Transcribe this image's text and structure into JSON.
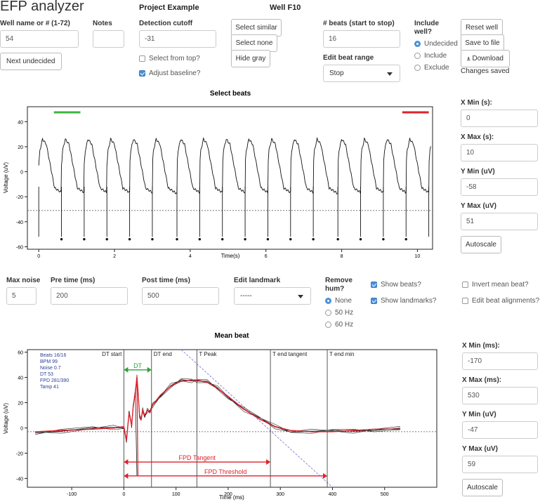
{
  "app": {
    "title": "EFP analyzer"
  },
  "project": {
    "title": "Project Example",
    "well_title": "Well F10"
  },
  "well": {
    "label": "Well name or # (1-72)",
    "value": "54",
    "next_button": "Next undecided"
  },
  "notes": {
    "label": "Notes",
    "value": ""
  },
  "detection": {
    "label": "Detection cutoff",
    "value": "-31",
    "select_from_top": "Select from top?",
    "adjust_baseline": "Adjust baseline?"
  },
  "selection": {
    "similar": "Select similar",
    "none": "Select none",
    "hide_gray": "Hide gray"
  },
  "beats": {
    "label": "# beats (start to stop)",
    "value": "16",
    "edit_range_label": "Edit beat range",
    "edit_range_value": "Stop"
  },
  "include": {
    "label_line1": "Include",
    "label_line2": "well?",
    "options": [
      "Undecided",
      "Include",
      "Exclude"
    ]
  },
  "actions": {
    "reset": "Reset well",
    "save": "Save to file",
    "download": "Download",
    "download_icon": "download-icon",
    "status": "Changes saved"
  },
  "select_plot": {
    "title": "Select beats",
    "xlabel": "Time(s)",
    "ylabel": "Voltage (uV)",
    "xticks": [
      "0",
      "2",
      "4",
      "6",
      "8",
      "10"
    ],
    "yticks": [
      "40",
      "20",
      "0",
      "-20",
      "-40",
      "-60"
    ]
  },
  "select_axes": {
    "xmin_label": "X Min (s):",
    "xmin": "0",
    "xmax_label": "X Max (s):",
    "xmax": "10",
    "ymin_label": "Y Min (uV)",
    "ymin": "-58",
    "ymax_label": "Y Max (uV)",
    "ymax": "51",
    "autoscale": "Autoscale"
  },
  "params": {
    "max_noise_label": "Max noise",
    "max_noise": "5",
    "pre_time_label": "Pre time (ms)",
    "pre_time": "200",
    "post_time_label": "Post time (ms)",
    "post_time": "500",
    "landmark_label": "Edit landmark",
    "landmark_value": "-----"
  },
  "hum": {
    "label_line1": "Remove",
    "label_line2": "hum?",
    "options": [
      "None",
      "50 Hz",
      "60 Hz"
    ]
  },
  "display": {
    "show_beats": "Show beats?",
    "show_landmarks": "Show landmarks?",
    "invert": "Invert mean beat?",
    "edit_align": "Edit beat alignments?"
  },
  "mean_plot": {
    "title": "Mean beat",
    "xlabel": "Time (ms)",
    "ylabel": "Voltage (uV)",
    "xticks": [
      "-100",
      "0",
      "100",
      "200",
      "300",
      "400",
      "500"
    ],
    "yticks": [
      "60",
      "40",
      "20",
      "0",
      "-20",
      "-40"
    ],
    "stats": [
      "Beats 16/16",
      "BPM 99",
      "Noise 0.7",
      "DT 53",
      "FPD 281/390",
      "Tamp 41"
    ],
    "landmarks": [
      "DT start",
      "DT end",
      "T Peak",
      "T end tangent",
      "T end min"
    ],
    "dt_label": "DT",
    "fpd_tangent_label": "FPD Tangent",
    "fpd_threshold_label": "FPD Threshold"
  },
  "mean_axes": {
    "xmin_label": "X Min (ms):",
    "xmin": "-170",
    "xmax_label": "X Max (ms):",
    "xmax": "530",
    "ymin_label": "Y Min (uV)",
    "ymin": "-47",
    "ymax_label": "Y Max (uV)",
    "ymax": "59",
    "autoscale": "Autoscale"
  },
  "chart_data": [
    {
      "type": "line",
      "title": "Select beats",
      "xlabel": "Time(s)",
      "ylabel": "Voltage (uV)",
      "xlim": [
        -0.3,
        10.4
      ],
      "ylim": [
        -62,
        52
      ],
      "detection_cutoff": -31,
      "beat_times": [
        0.6,
        1.2,
        1.8,
        2.4,
        3.0,
        3.65,
        4.25,
        4.85,
        5.45,
        6.05,
        6.65,
        7.25,
        7.9,
        8.5,
        9.1,
        9.7
      ],
      "beat_marker_y": -54,
      "start_bar": [
        0.4,
        1.1
      ],
      "stop_bar": [
        9.6,
        10.3
      ]
    },
    {
      "type": "line",
      "title": "Mean beat",
      "xlabel": "Time (ms)",
      "ylabel": "Voltage (uV)",
      "xlim": [
        -185,
        600
      ],
      "ylim": [
        -47,
        62
      ],
      "x": [
        -170,
        -120,
        -60,
        -20,
        0,
        5,
        10,
        15,
        18,
        22,
        25,
        27,
        30,
        33,
        36,
        40,
        45,
        50,
        55,
        70,
        90,
        110,
        130,
        140,
        160,
        180,
        200,
        230,
        260,
        290,
        320,
        360,
        400,
        440,
        480,
        530
      ],
      "y": [
        -3,
        -2,
        -1,
        0,
        1,
        -10,
        12,
        2,
        18,
        28,
        40,
        30,
        10,
        6,
        14,
        10,
        14,
        12,
        18,
        26,
        33,
        37,
        38,
        38,
        36,
        31,
        25,
        15,
        7,
        1,
        -2,
        -3,
        -3,
        -2,
        -1,
        -1
      ],
      "landmarks_x": [
        0,
        53,
        140,
        281,
        390
      ],
      "dt_arrow": [
        0,
        53,
        46
      ],
      "fpd_tangent_arrow": [
        0,
        281,
        -27
      ],
      "fpd_threshold_arrow": [
        0,
        390,
        -38
      ],
      "baseline": -3
    }
  ]
}
